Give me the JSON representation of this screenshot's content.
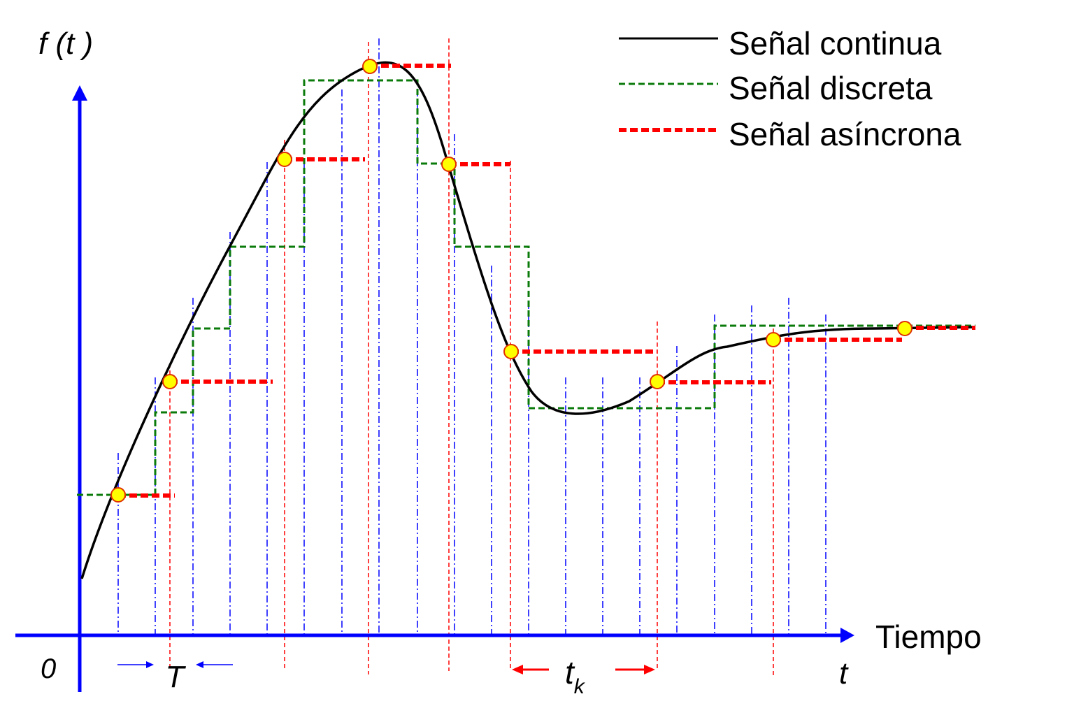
{
  "labels": {
    "y_axis": "f (t )",
    "origin": "0",
    "x_axis_word": "Tiempo",
    "x_axis_var": "t",
    "period": "T",
    "async_interval_main": "t",
    "async_interval_sub": "k"
  },
  "legend": {
    "continuous": "Señal continua",
    "discrete": "Señal discreta",
    "async": "Señal asíncrona"
  },
  "colors": {
    "axis": "#0000ff",
    "continuous": "#000000",
    "discrete": "#0a7a0a",
    "async": "#ff0000",
    "sample_grid": "#0000ff",
    "async_grid": "#ff0000",
    "marker_fill": "#ffff00",
    "marker_stroke": "#e03000"
  },
  "icons": {
    "axis_arrow": "arrowhead-icon",
    "sample_marker": "circle-marker-icon"
  }
}
